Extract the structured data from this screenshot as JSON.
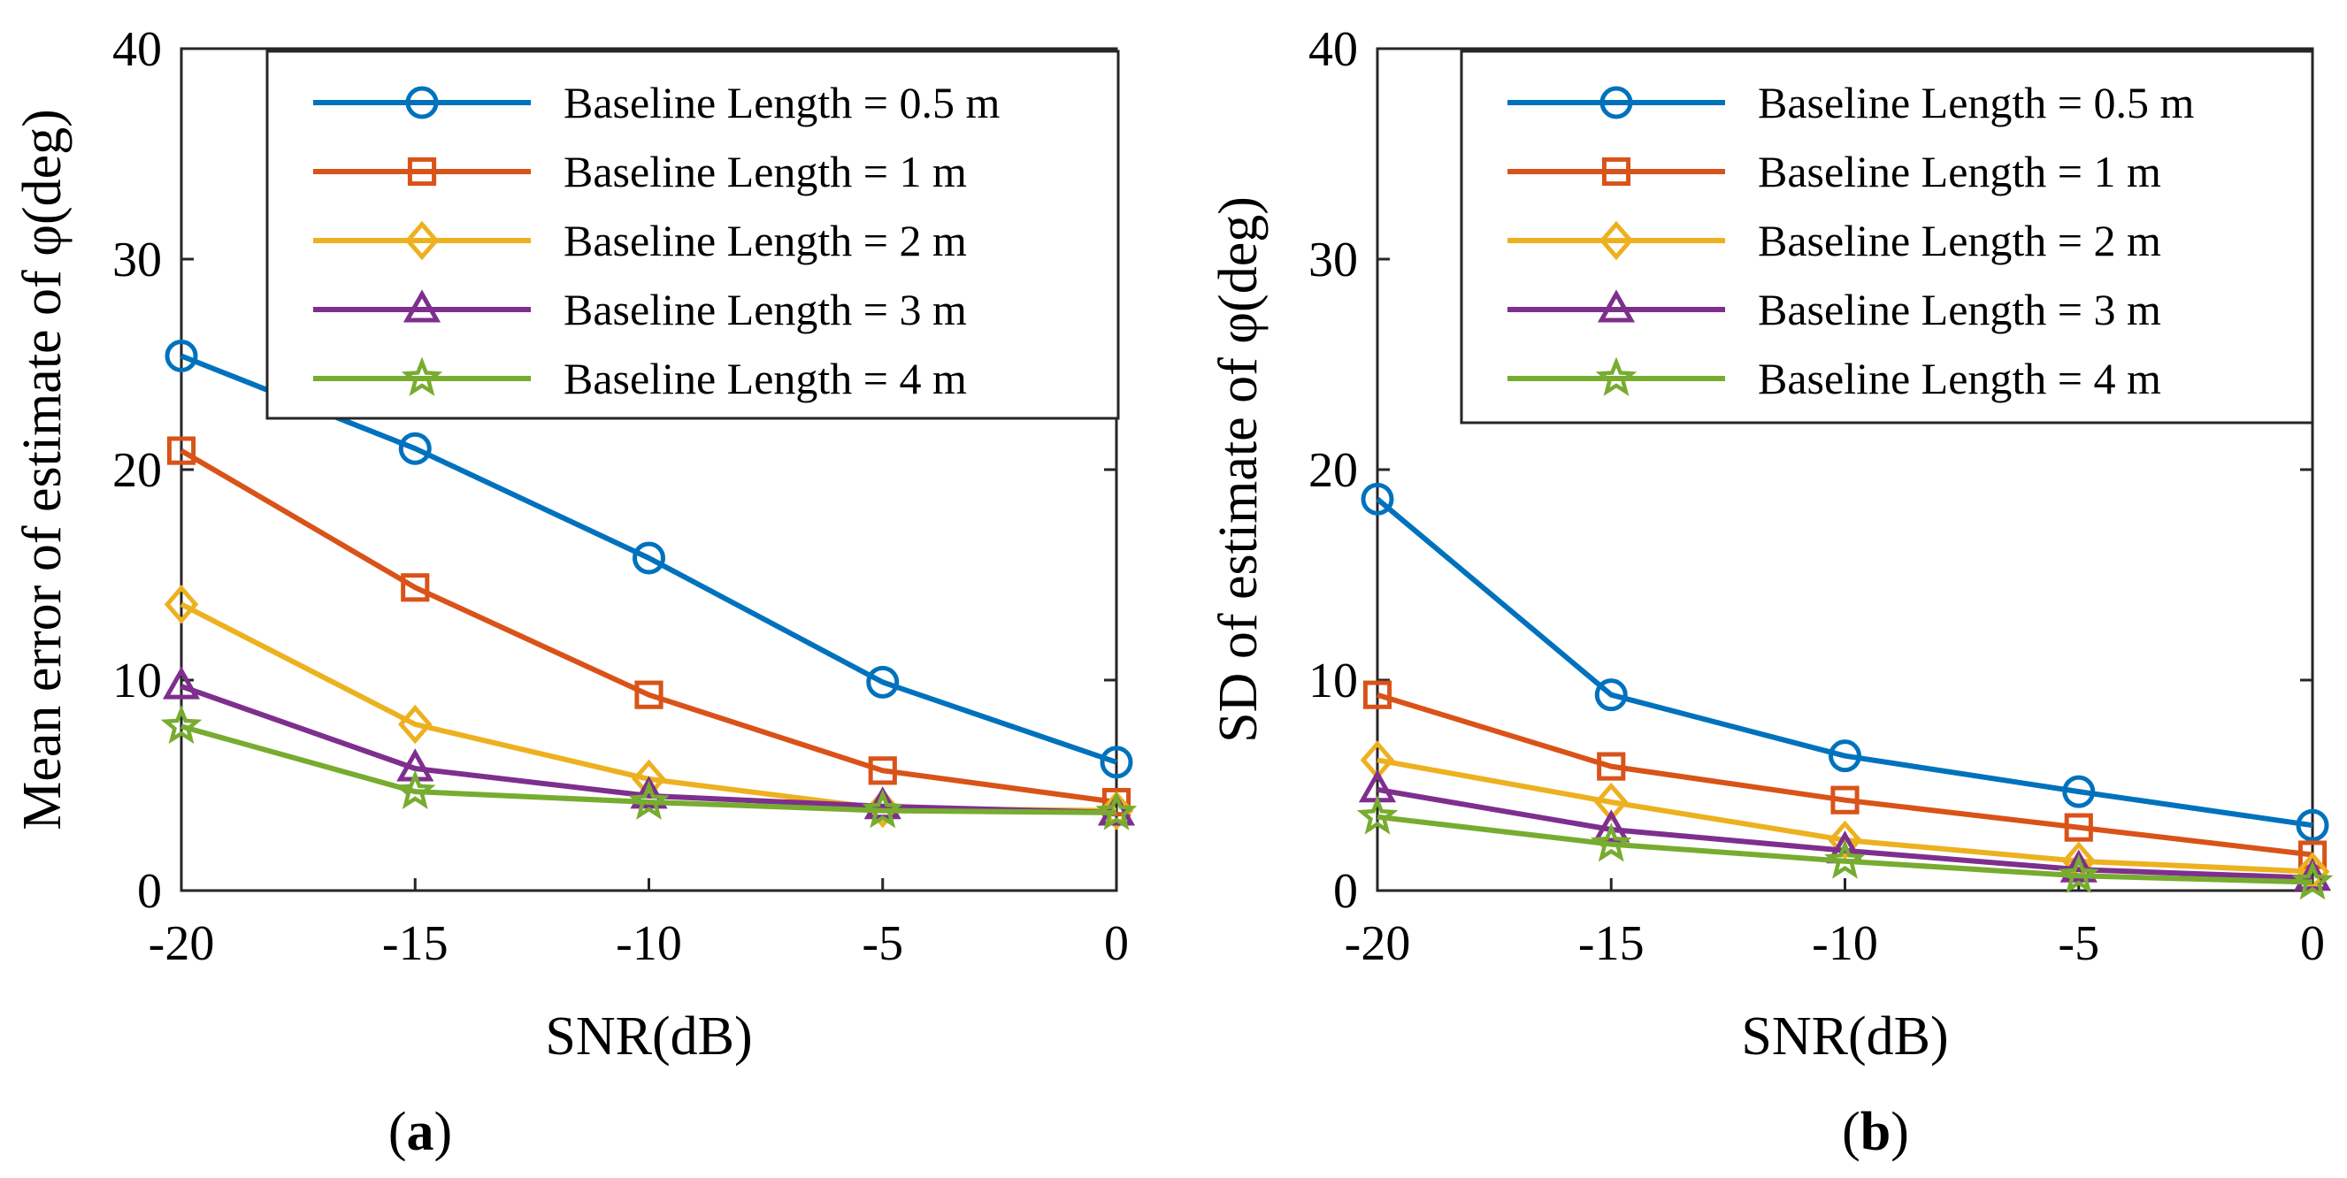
{
  "chart_data": [
    {
      "type": "line",
      "panel_label": "(a)",
      "xlabel": "SNR(dB)",
      "ylabel": "Mean error of estimate of φ(deg)",
      "x": [
        -20,
        -15,
        -10,
        -5,
        0
      ],
      "x_ticks": [
        "-20",
        "-15",
        "-10",
        "-5",
        "0"
      ],
      "y_ticks": [
        "0",
        "10",
        "20",
        "30",
        "40"
      ],
      "xlim": [
        -20,
        0
      ],
      "ylim": [
        0,
        40
      ],
      "legend_position": "top-right",
      "series": [
        {
          "name": "Baseline Length = 0.5 m",
          "marker": "circle",
          "color": "#0072BD",
          "values": [
            25.4,
            21.0,
            15.8,
            9.9,
            6.1
          ]
        },
        {
          "name": "Baseline Length = 1 m",
          "marker": "square",
          "color": "#D95319",
          "values": [
            20.9,
            14.4,
            9.3,
            5.7,
            4.2
          ]
        },
        {
          "name": "Baseline Length = 2 m",
          "marker": "diamond",
          "color": "#EDB120",
          "values": [
            13.6,
            7.9,
            5.3,
            3.9,
            3.8
          ]
        },
        {
          "name": "Baseline Length = 3 m",
          "marker": "triangle",
          "color": "#7E2F8E",
          "values": [
            9.7,
            5.8,
            4.5,
            4.0,
            3.7
          ]
        },
        {
          "name": "Baseline Length = 4 m",
          "marker": "star",
          "color": "#77AC30",
          "values": [
            7.8,
            4.7,
            4.2,
            3.8,
            3.7
          ]
        }
      ]
    },
    {
      "type": "line",
      "panel_label": "(b)",
      "xlabel": "SNR(dB)",
      "ylabel": "SD of estimate of φ(deg)",
      "x": [
        -20,
        -15,
        -10,
        -5,
        0
      ],
      "x_ticks": [
        "-20",
        "-15",
        "-10",
        "-5",
        "0"
      ],
      "y_ticks": [
        "0",
        "10",
        "20",
        "30",
        "40"
      ],
      "xlim": [
        -20,
        0
      ],
      "ylim": [
        0,
        40
      ],
      "legend_position": "top-right",
      "series": [
        {
          "name": "Baseline Length = 0.5 m",
          "marker": "circle",
          "color": "#0072BD",
          "values": [
            18.6,
            9.3,
            6.4,
            4.7,
            3.1
          ]
        },
        {
          "name": "Baseline Length = 1 m",
          "marker": "square",
          "color": "#D95319",
          "values": [
            9.3,
            5.9,
            4.3,
            3.0,
            1.7
          ]
        },
        {
          "name": "Baseline Length = 2 m",
          "marker": "diamond",
          "color": "#EDB120",
          "values": [
            6.2,
            4.2,
            2.4,
            1.4,
            0.9
          ]
        },
        {
          "name": "Baseline Length = 3 m",
          "marker": "triangle",
          "color": "#7E2F8E",
          "values": [
            4.8,
            2.9,
            1.9,
            1.0,
            0.6
          ]
        },
        {
          "name": "Baseline Length = 4 m",
          "marker": "star",
          "color": "#77AC30",
          "values": [
            3.5,
            2.2,
            1.4,
            0.7,
            0.4
          ]
        }
      ]
    }
  ]
}
